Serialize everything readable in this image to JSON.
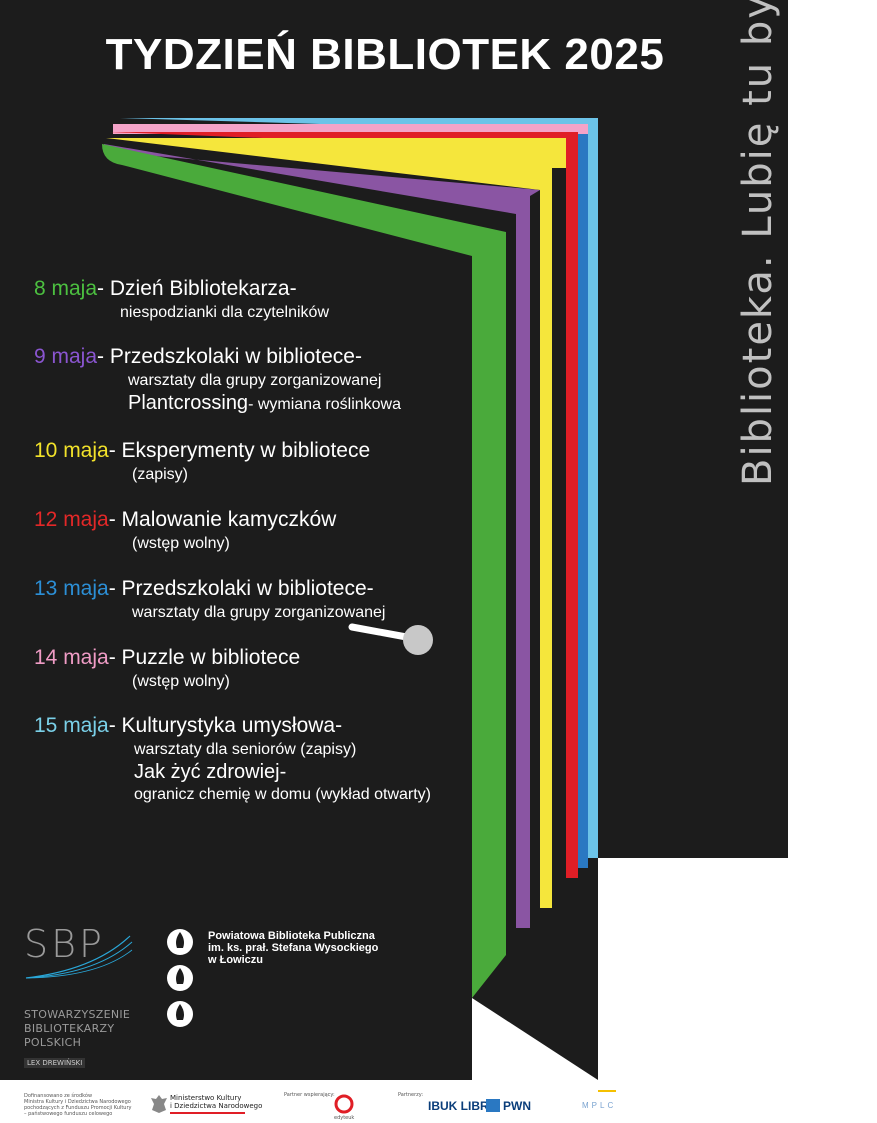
{
  "title": "TYDZIEŃ BIBLIOTEK 2025",
  "slogan": "Biblioteka. Lubię tu być",
  "colors": {
    "background": "#1c1c1c",
    "green": "#4aaa3b",
    "purple": "#8a55a3",
    "yellow": "#f5e63c",
    "red": "#e01e26",
    "blue": "#2a78c2",
    "pink": "#f4a3c8",
    "lightblue": "#6cc3e8",
    "text": "#ffffff"
  },
  "events": [
    {
      "date": "8 maja",
      "color": "#4cc040",
      "title": "- Dzień Bibliotekarza-",
      "details": [
        "niespodzianki dla czytelników"
      ]
    },
    {
      "date": "9 maja",
      "color": "#8a55d0",
      "title": "- Przedszkolaki w bibliotece-",
      "details": [
        "warsztaty dla grupy zorganizowanej"
      ],
      "extra_title": "Plantcrossing",
      "extra_detail": "- wymiana roślinkowa"
    },
    {
      "date": "10 maja",
      "color": "#f2e22a",
      "title": "- Eksperymenty w bibliotece",
      "details": [
        "(zapisy)"
      ]
    },
    {
      "date": "12 maja",
      "color": "#e32828",
      "title": "- Malowanie kamyczków",
      "details": [
        "(wstęp wolny)"
      ]
    },
    {
      "date": "13 maja",
      "color": "#2c8fd6",
      "title": "- Przedszkolaki w bibliotece-",
      "details": [
        "warsztaty dla grupy zorganizowanej"
      ]
    },
    {
      "date": "14 maja",
      "color": "#f09cc6",
      "title": "- Puzzle w bibliotece",
      "details": [
        "(wstęp wolny)"
      ]
    },
    {
      "date": "15 maja",
      "color": "#7ad0e8",
      "title": "- Kulturystyka umysłowa-",
      "details": [
        "warsztaty dla seniorów (zapisy)"
      ],
      "extra_title": "Jak żyć zdrowiej-",
      "extra_detail": "ogranicz chemię w domu (wykład otwarty)"
    }
  ],
  "sbp": {
    "letters": "SBP",
    "name_lines": [
      "STOWARZYSZENIE",
      "BIBLIOTEKARZY",
      "POLSKICH"
    ],
    "lex": "LEX DREWIŃSKI"
  },
  "pbp": {
    "lines": [
      "Powiatowa Biblioteka Publiczna",
      "im. ks. prał. Stefana Wysockiego",
      "w Łowiczu"
    ]
  },
  "footer": {
    "funding": [
      "Dofinansowano ze środków",
      "Ministra Kultury i Dziedzictwa Narodowego",
      "pochodzących z Funduszu Promocji Kultury",
      "– państwowego funduszu celowego"
    ],
    "ministry": [
      "Ministerstwo Kultury",
      "i Dziedzictwa Narodowego"
    ],
    "partner_label": "Partner wspierający:",
    "partner_name": "edyteuk",
    "partners_label": "Partnerzy:",
    "ibuk": "IBUK LIBRA",
    "pwn": "PWN",
    "mplc": "MPLC"
  }
}
